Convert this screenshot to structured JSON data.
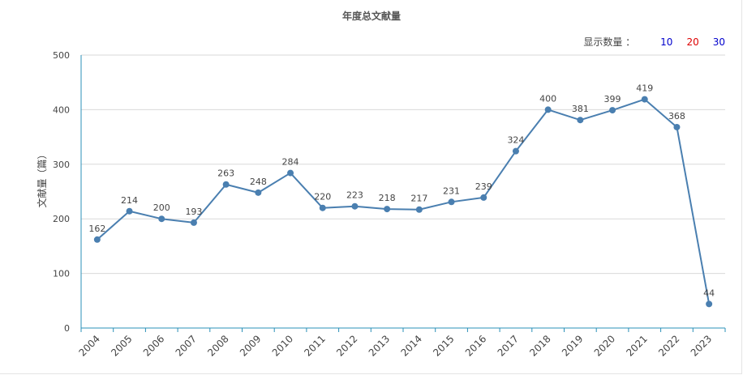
{
  "chart_data": {
    "type": "line",
    "title": "年度总文献量",
    "ylabel": "文献量（篇）",
    "xlabel": "",
    "ylim": [
      0,
      500
    ],
    "yticks": [
      0,
      100,
      200,
      300,
      400,
      500
    ],
    "grid": true,
    "categories": [
      "2004",
      "2005",
      "2006",
      "2007",
      "2008",
      "2009",
      "2010",
      "2011",
      "2012",
      "2013",
      "2014",
      "2015",
      "2016",
      "2017",
      "2018",
      "2019",
      "2020",
      "2021",
      "2022",
      "2023"
    ],
    "values": [
      162,
      214,
      200,
      193,
      263,
      248,
      284,
      220,
      223,
      218,
      217,
      231,
      239,
      324,
      400,
      381,
      399,
      419,
      368,
      44
    ],
    "line_color": "#4a7fb0"
  },
  "controls": {
    "display_count_label": "显示数量 ：",
    "options": [
      {
        "label": "10",
        "color": "#0000cc"
      },
      {
        "label": "20",
        "color": "#dd0000"
      },
      {
        "label": "30",
        "color": "#0000cc"
      }
    ]
  }
}
